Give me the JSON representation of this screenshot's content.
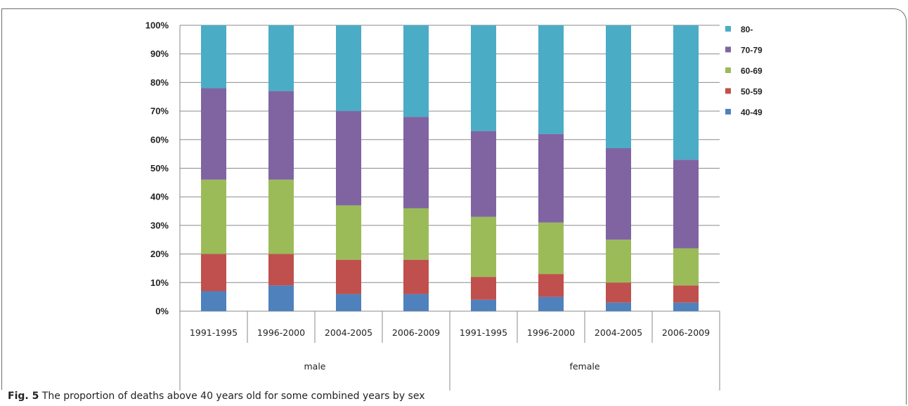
{
  "figure": {
    "label": "Fig. 5",
    "caption": "The proportion of deaths above 40 years old for some combined years by sex"
  },
  "chart_data": {
    "type": "bar",
    "stacked": true,
    "title": "",
    "xlabel": "",
    "ylabel": "",
    "ylim": [
      0,
      100
    ],
    "yticks": [
      "0%",
      "10%",
      "20%",
      "30%",
      "40%",
      "50%",
      "60%",
      "70%",
      "80%",
      "90%",
      "100%"
    ],
    "grid": true,
    "legend_position": "right",
    "groups": [
      "male",
      "female"
    ],
    "categories": [
      "1991-1995",
      "1996-2000",
      "2004-2005",
      "2006-2009",
      "1991-1995",
      "1996-2000",
      "2004-2005",
      "2006-2009"
    ],
    "category_group": [
      0,
      0,
      0,
      0,
      1,
      1,
      1,
      1
    ],
    "series": [
      {
        "name": "40-49",
        "color": "#4f81bd",
        "values": [
          7,
          9,
          6,
          6,
          4,
          5,
          3,
          3
        ]
      },
      {
        "name": "50-59",
        "color": "#c0504d",
        "values": [
          13,
          11,
          12,
          12,
          8,
          8,
          7,
          6
        ]
      },
      {
        "name": "60-69",
        "color": "#9bbb59",
        "values": [
          26,
          26,
          19,
          18,
          21,
          18,
          15,
          13
        ]
      },
      {
        "name": "70-79",
        "color": "#8064a2",
        "values": [
          32,
          31,
          33,
          32,
          30,
          31,
          32,
          31
        ]
      },
      {
        "name": "80-",
        "color": "#4bacc6",
        "values": [
          22,
          23,
          30,
          32,
          37,
          38,
          43,
          47
        ]
      }
    ]
  }
}
